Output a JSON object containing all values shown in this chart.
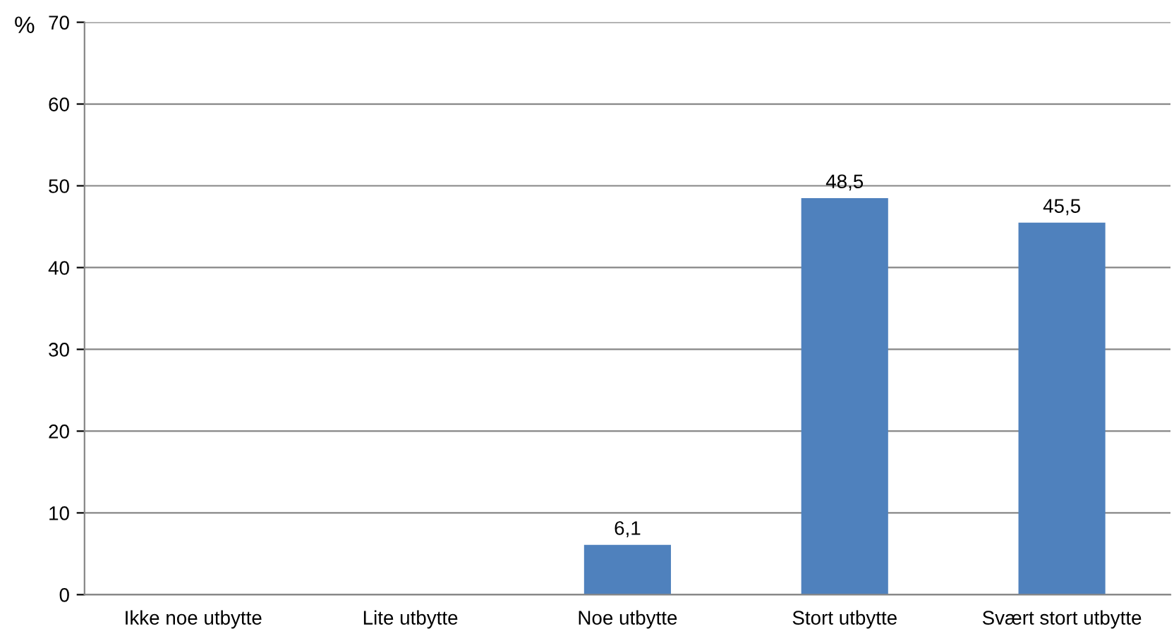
{
  "chart_data": {
    "type": "bar",
    "ylabel": "%",
    "categories": [
      "Ikke noe utbytte",
      "Lite utbytte",
      "Noe utbytte",
      "Stort utbytte",
      "Svært stort utbytte"
    ],
    "values": [
      null,
      null,
      6.1,
      48.5,
      45.5
    ],
    "value_labels": [
      null,
      null,
      "6,1",
      "48,5",
      "45,5"
    ],
    "color": "#4f81bd",
    "ylim": [
      0,
      70
    ],
    "yticks": [
      0,
      10,
      20,
      30,
      40,
      50,
      60,
      70
    ],
    "grid": "y",
    "legend": false
  }
}
